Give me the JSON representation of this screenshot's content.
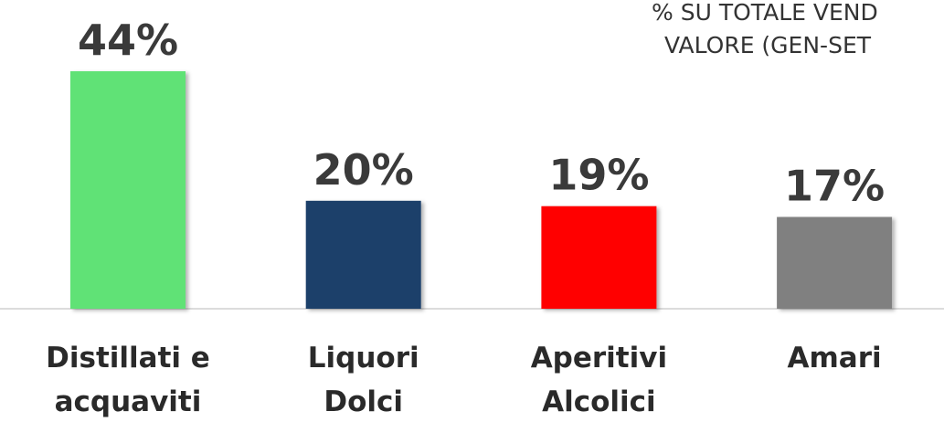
{
  "chart_data": {
    "type": "bar",
    "title_lines": [
      "% SU TOTALE VEND",
      "VALORE (GEN-SET"
    ],
    "categories": [
      [
        "Distillati e",
        "acquaviti"
      ],
      [
        "Liquori",
        "Dolci"
      ],
      [
        "Aperitivi",
        "Alcolici"
      ],
      [
        "Amari"
      ]
    ],
    "values": [
      44,
      20,
      19,
      17
    ],
    "value_labels": [
      "44%",
      "20%",
      "19%",
      "17%"
    ],
    "colors": [
      "#61e276",
      "#1b3f6b",
      "#ff0000",
      "#808080"
    ],
    "ylim": [
      0,
      44
    ]
  }
}
